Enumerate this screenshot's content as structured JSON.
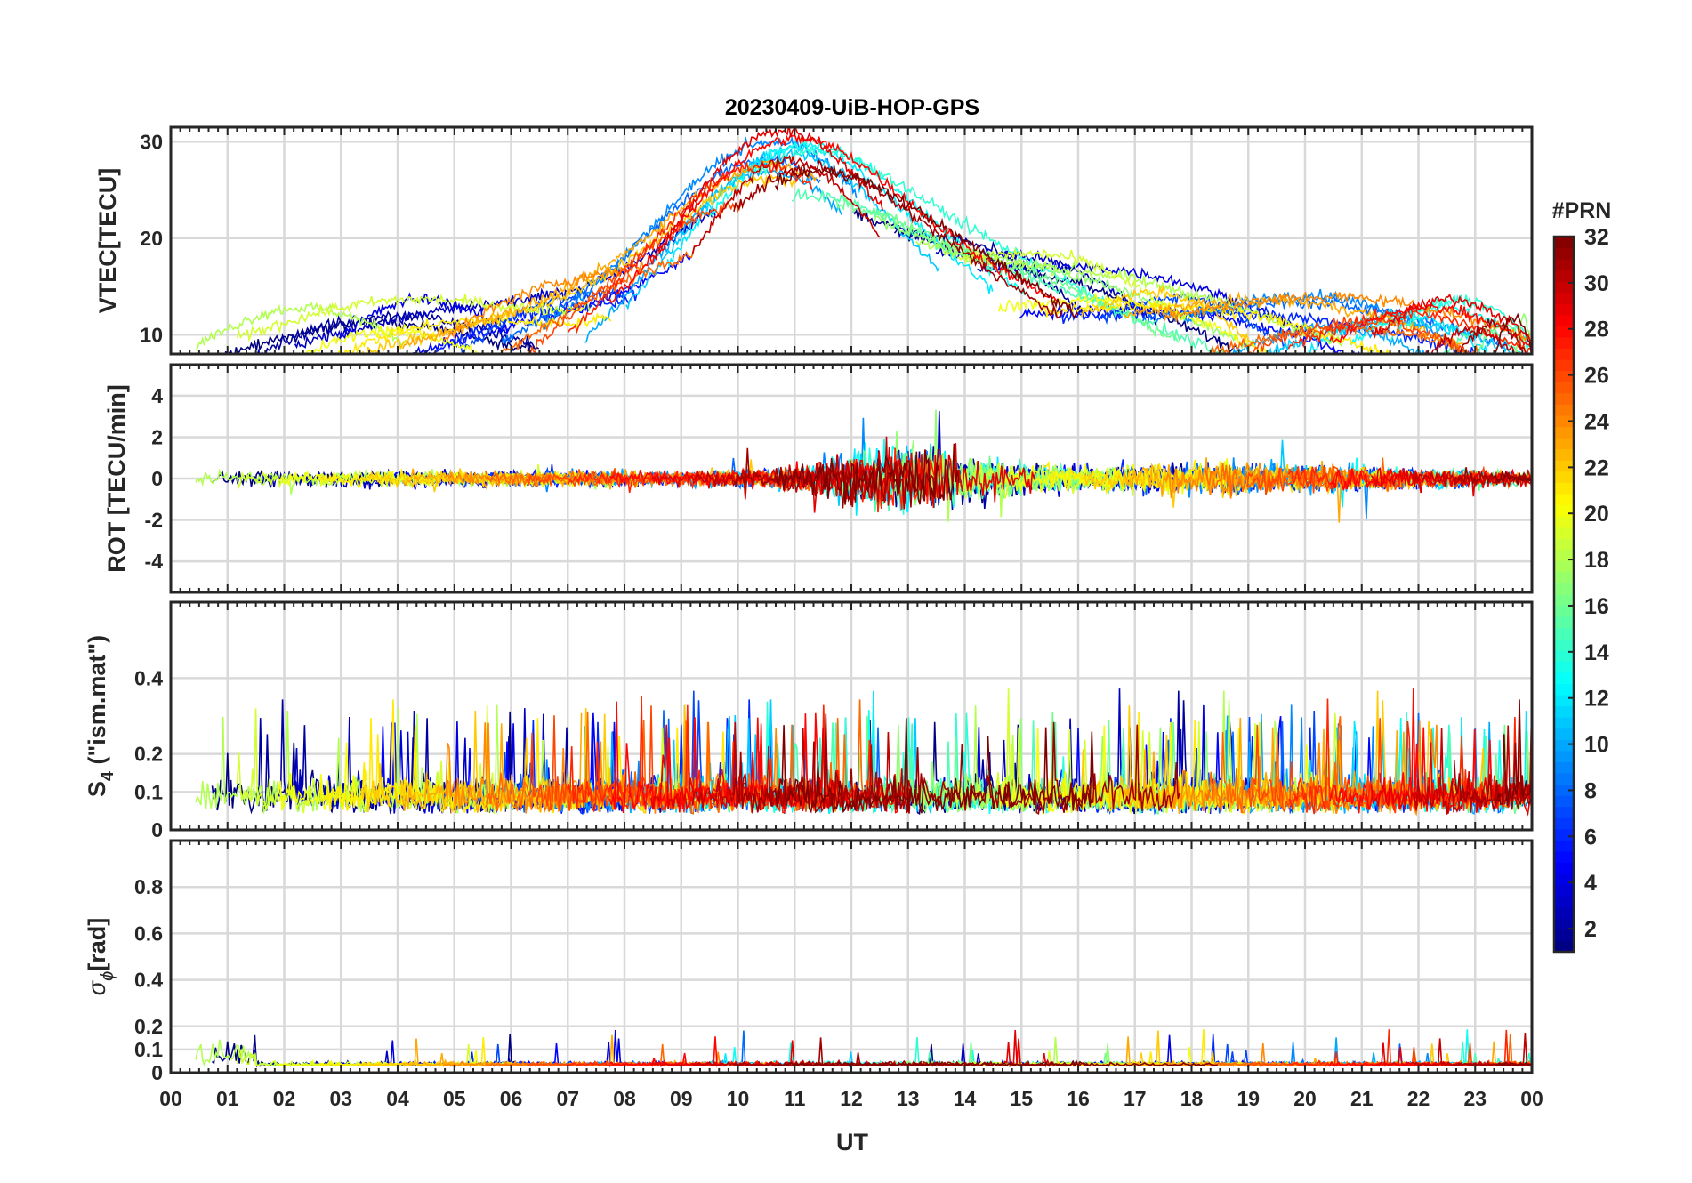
{
  "chart_data": [
    {
      "type": "line",
      "title": "20230409-UiB-HOP-GPS",
      "panel": "vtec",
      "ylabel": "VTEC[TECU]",
      "ylim": [
        8,
        31.5
      ],
      "yticks": [
        10,
        20,
        30
      ],
      "xlim": [
        0,
        24
      ],
      "grid": true,
      "series_description": "GPS PRN 1-32 lines, colored by PRN"
    },
    {
      "type": "line",
      "panel": "rot",
      "ylabel": "ROT [TECU/min]",
      "ylim": [
        -5.5,
        5.5
      ],
      "yticks": [
        -4,
        -2,
        0,
        2,
        4
      ],
      "xlim": [
        0,
        24
      ],
      "grid": true
    },
    {
      "type": "line",
      "panel": "s4",
      "ylabel_main": "S",
      "ylabel_sub": "4",
      "ylabel_rest": " (\"ism.mat\")",
      "ylim": [
        0,
        0.6
      ],
      "yticks": [
        0,
        0.1,
        0.2,
        0.4
      ],
      "ytick_labels": [
        "0",
        "0.1",
        "0.2",
        "0.4"
      ],
      "xlim": [
        0,
        24
      ],
      "grid": true
    },
    {
      "type": "line",
      "panel": "sigma_phi",
      "ylabel_main": "σ",
      "ylabel_sub": "ϕ",
      "ylabel_rest": "[rad]",
      "ylim": [
        0,
        1.0
      ],
      "yticks": [
        0,
        0.1,
        0.2,
        0.4,
        0.6,
        0.8
      ],
      "ytick_labels": [
        "0",
        "0.1",
        "0.2",
        "0.4",
        "0.6",
        "0.8"
      ],
      "xlim": [
        0,
        24
      ],
      "xlabel": "UT",
      "xtick_labels": [
        "00",
        "01",
        "02",
        "03",
        "04",
        "05",
        "06",
        "07",
        "08",
        "09",
        "10",
        "11",
        "12",
        "13",
        "14",
        "15",
        "16",
        "17",
        "18",
        "19",
        "20",
        "21",
        "22",
        "23",
        "00"
      ],
      "grid": true
    }
  ],
  "colorbar": {
    "title": "#PRN",
    "range": [
      1,
      32
    ],
    "ticks": [
      2,
      4,
      6,
      8,
      10,
      12,
      14,
      16,
      18,
      20,
      22,
      24,
      26,
      28,
      30,
      32
    ],
    "colormap": "jet"
  }
}
